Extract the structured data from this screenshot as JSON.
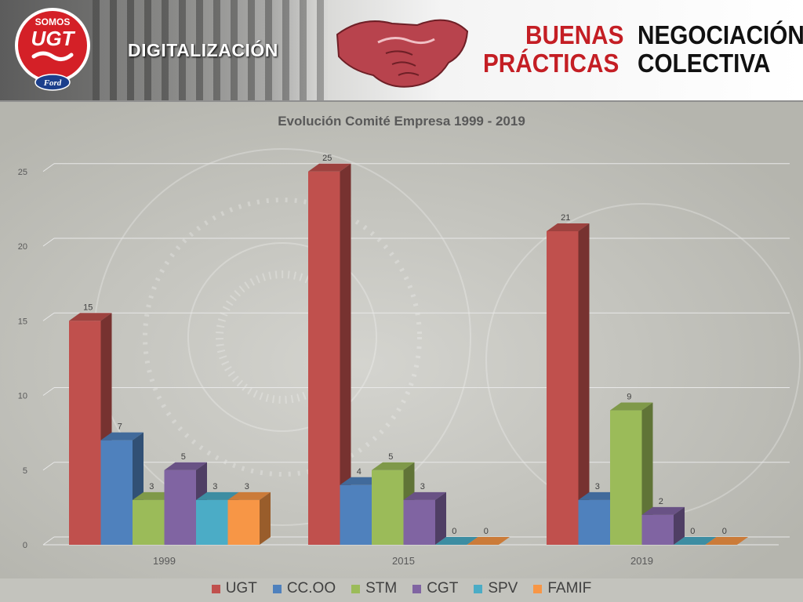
{
  "header": {
    "logo_top_text": "SOMOS",
    "logo_main_text": "UGT",
    "logo_brand_text": "Ford",
    "section_title": "DIGITALIZACIÓN",
    "title_line1_red": "BUENAS",
    "title_line1_black": "NEGOCIACIÓN",
    "title_line2_red": "PRÁCTICAS",
    "title_line2_black": "COLECTIVA",
    "colors": {
      "red": "#c41e24",
      "black": "#111111"
    }
  },
  "chart_data": {
    "type": "bar",
    "title": "Evolución Comité Empresa 1999 - 2019",
    "categories": [
      "1999",
      "2015",
      "2019"
    ],
    "series": [
      {
        "name": "UGT",
        "values": [
          15,
          25,
          21
        ],
        "color": "#c0504d"
      },
      {
        "name": "CC.OO",
        "values": [
          7,
          4,
          3
        ],
        "color": "#4f81bd"
      },
      {
        "name": "STM",
        "values": [
          3,
          5,
          9
        ],
        "color": "#9bbb59"
      },
      {
        "name": "CGT",
        "values": [
          5,
          3,
          2
        ],
        "color": "#8064a2"
      },
      {
        "name": "SPV",
        "values": [
          3,
          0,
          0
        ],
        "color": "#4bacc6"
      },
      {
        "name": "FAMIF",
        "values": [
          3,
          0,
          0
        ],
        "color": "#f79646"
      }
    ],
    "yticks": [
      "0",
      "5",
      "10",
      "15",
      "20",
      "25"
    ],
    "ylim": [
      0,
      25
    ],
    "grid": true,
    "legend_position": "bottom",
    "style": "3d-clustered-column"
  }
}
